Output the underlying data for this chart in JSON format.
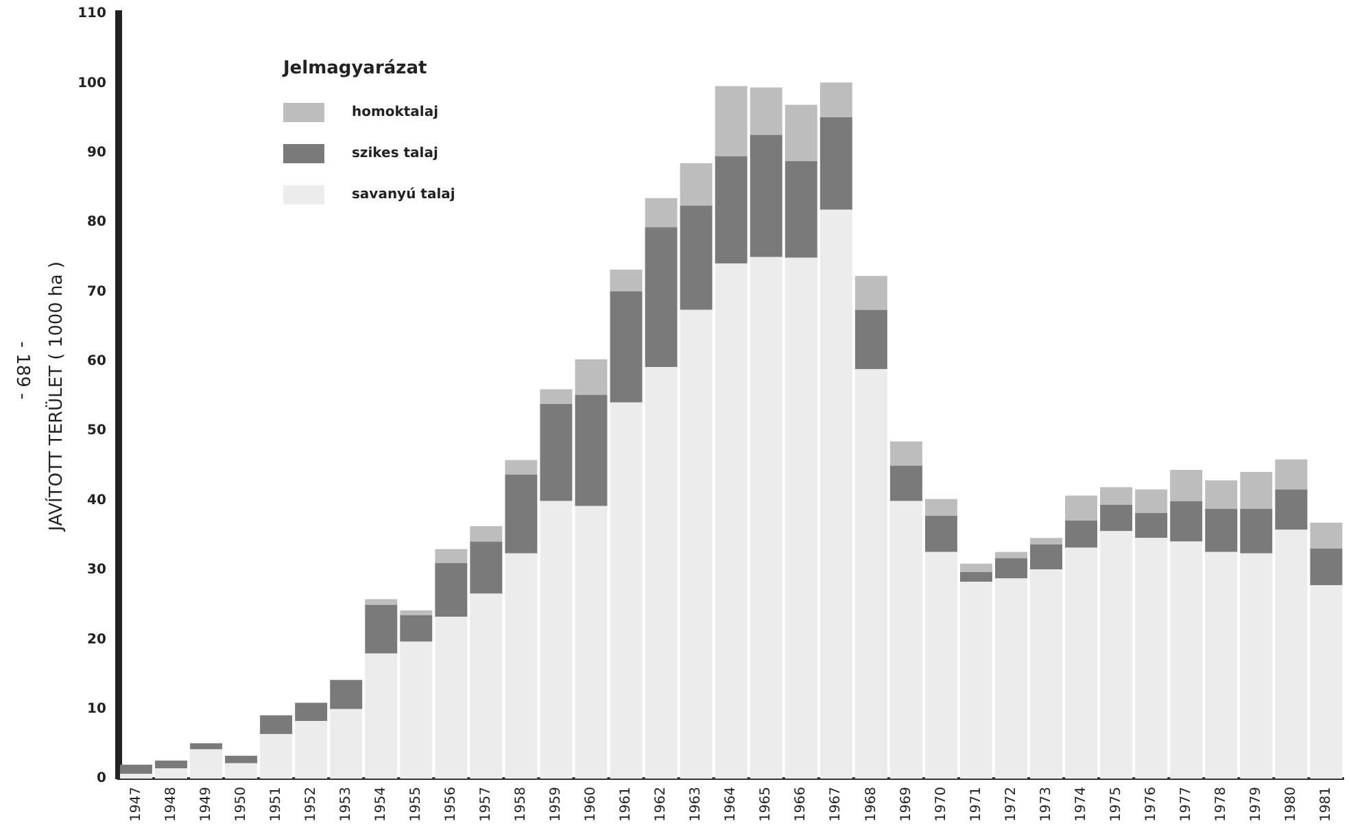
{
  "chart_data": {
    "type": "bar",
    "stacked": true,
    "ylabel": "JAVÍTOTT TERÜLET ( 1000 ha )",
    "legend_title": "Jelmagyarázat",
    "annotations": [
      "- 189 -"
    ],
    "categories": [
      "1947",
      "1948",
      "1949",
      "1950",
      "1951",
      "1952",
      "1953",
      "1954",
      "1955",
      "1956",
      "1957",
      "1958",
      "1959",
      "1960",
      "1961",
      "1962",
      "1963",
      "1964",
      "1965",
      "1966",
      "1967",
      "1968",
      "1969",
      "1970",
      "1971",
      "1972",
      "1973",
      "1974",
      "1975",
      "1976",
      "1977",
      "1978",
      "1979",
      "1980",
      "1981"
    ],
    "series": [
      {
        "name": "savanyú talaj",
        "color": "#ececec",
        "values": [
          0.7,
          1.5,
          4.2,
          2.2,
          6.4,
          8.3,
          10.0,
          18.0,
          19.7,
          23.3,
          26.6,
          32.4,
          39.9,
          39.2,
          54.1,
          59.2,
          67.4,
          74.1,
          75.0,
          74.9,
          81.8,
          58.9,
          39.9,
          32.6,
          28.3,
          28.8,
          30.1,
          33.2,
          35.6,
          34.6,
          34.1,
          32.6,
          32.4,
          35.8,
          27.8
        ]
      },
      {
        "name": "szikes talaj",
        "color": "#7a7a7a",
        "values": [
          1.3,
          1.1,
          0.9,
          1.1,
          2.7,
          2.6,
          4.2,
          7.0,
          3.8,
          7.7,
          7.5,
          11.3,
          14.0,
          16.0,
          16.0,
          20.1,
          15.0,
          15.4,
          17.6,
          13.9,
          13.3,
          8.5,
          5.1,
          5.2,
          1.4,
          2.9,
          3.6,
          3.9,
          3.8,
          3.6,
          5.8,
          6.2,
          6.4,
          5.8,
          5.3
        ]
      },
      {
        "name": "homoktalaj",
        "color": "#bdbdbd",
        "values": [
          0,
          0,
          0,
          0,
          0,
          0,
          0,
          0.8,
          0.7,
          2.0,
          2.2,
          2.1,
          2.1,
          5.1,
          3.1,
          4.2,
          6.1,
          10.1,
          6.8,
          8.1,
          5.0,
          4.9,
          3.5,
          2.4,
          1.2,
          0.9,
          0.9,
          3.6,
          2.5,
          3.4,
          4.5,
          4.1,
          5.3,
          4.3,
          3.7
        ]
      }
    ],
    "ylim": [
      0,
      110
    ],
    "yticks": [
      0,
      10,
      20,
      30,
      40,
      50,
      60,
      70,
      80,
      90,
      100,
      110
    ],
    "grid": false,
    "legend": "top left"
  }
}
